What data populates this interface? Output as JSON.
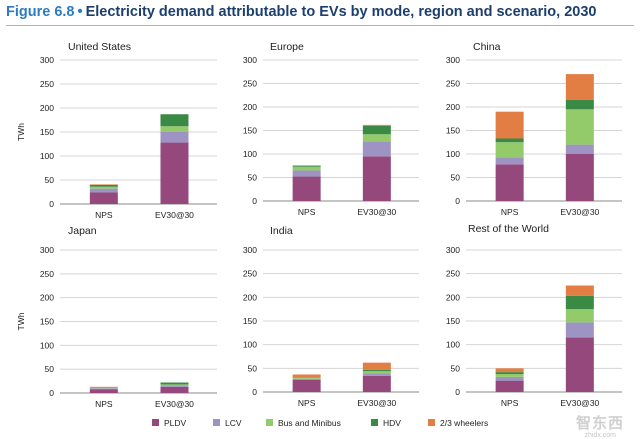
{
  "figure": {
    "number": "Figure 6.8",
    "bullet": "•",
    "title": "Electricity demand attributable to EVs by mode, region and scenario, 2030"
  },
  "colors": {
    "PLDV": "#95487c",
    "LCV": "#9d94c4",
    "Bus and Minibus": "#94cb6a",
    "HDV": "#3a8a45",
    "2/3 wheelers": "#e27d43",
    "grid": "#d4d4d4",
    "axis": "#888888"
  },
  "chart_data": [
    {
      "type": "bar",
      "stacked": true,
      "title": "United States",
      "ylabel": "TWh",
      "ylim": [
        0,
        300
      ],
      "yticks": [
        0,
        50,
        100,
        150,
        200,
        250,
        300
      ],
      "categories": [
        "NPS",
        "EV30@30"
      ],
      "series": [
        {
          "name": "PLDV",
          "values": [
            24,
            128
          ]
        },
        {
          "name": "LCV",
          "values": [
            8,
            22
          ]
        },
        {
          "name": "Bus and Minibus",
          "values": [
            4,
            12
          ]
        },
        {
          "name": "HDV",
          "values": [
            4,
            25
          ]
        },
        {
          "name": "2/3 wheelers",
          "values": [
            1,
            0
          ]
        }
      ]
    },
    {
      "type": "bar",
      "stacked": true,
      "title": "Europe",
      "ylabel": "",
      "ylim": [
        0,
        300
      ],
      "yticks": [
        0,
        50,
        100,
        150,
        200,
        250,
        300
      ],
      "categories": [
        "NPS",
        "EV30@30"
      ],
      "series": [
        {
          "name": "PLDV",
          "values": [
            52,
            95
          ]
        },
        {
          "name": "LCV",
          "values": [
            13,
            32
          ]
        },
        {
          "name": "Bus and Minibus",
          "values": [
            8,
            15
          ]
        },
        {
          "name": "HDV",
          "values": [
            2,
            18
          ]
        },
        {
          "name": "2/3 wheelers",
          "values": [
            1,
            2
          ]
        }
      ]
    },
    {
      "type": "bar",
      "stacked": true,
      "title": "China",
      "ylabel": "",
      "ylim": [
        0,
        300
      ],
      "yticks": [
        0,
        50,
        100,
        150,
        200,
        250,
        300
      ],
      "categories": [
        "NPS",
        "EV30@30"
      ],
      "series": [
        {
          "name": "PLDV",
          "values": [
            78,
            100
          ]
        },
        {
          "name": "LCV",
          "values": [
            15,
            20
          ]
        },
        {
          "name": "Bus and Minibus",
          "values": [
            32,
            75
          ]
        },
        {
          "name": "HDV",
          "values": [
            8,
            20
          ]
        },
        {
          "name": "2/3 wheelers",
          "values": [
            57,
            55
          ]
        }
      ]
    },
    {
      "type": "bar",
      "stacked": true,
      "title": "Japan",
      "ylabel": "TWh",
      "ylim": [
        0,
        300
      ],
      "yticks": [
        0,
        50,
        100,
        150,
        200,
        250,
        300
      ],
      "categories": [
        "NPS",
        "EV30@30"
      ],
      "series": [
        {
          "name": "PLDV",
          "values": [
            8,
            13
          ]
        },
        {
          "name": "LCV",
          "values": [
            2,
            3
          ]
        },
        {
          "name": "Bus and Minibus",
          "values": [
            1,
            2
          ]
        },
        {
          "name": "HDV",
          "values": [
            1,
            4
          ]
        },
        {
          "name": "2/3 wheelers",
          "values": [
            1,
            0
          ]
        }
      ]
    },
    {
      "type": "bar",
      "stacked": true,
      "title": "India",
      "ylabel": "",
      "ylim": [
        0,
        300
      ],
      "yticks": [
        0,
        50,
        100,
        150,
        200,
        250,
        300
      ],
      "categories": [
        "NPS",
        "EV30@30"
      ],
      "series": [
        {
          "name": "PLDV",
          "values": [
            26,
            34
          ]
        },
        {
          "name": "LCV",
          "values": [
            2,
            5
          ]
        },
        {
          "name": "Bus and Minibus",
          "values": [
            2,
            5
          ]
        },
        {
          "name": "HDV",
          "values": [
            1,
            3
          ]
        },
        {
          "name": "2/3 wheelers",
          "values": [
            6,
            15
          ]
        }
      ]
    },
    {
      "type": "bar",
      "stacked": true,
      "title": "Rest of the World",
      "ylabel": "",
      "ylim": [
        0,
        300
      ],
      "yticks": [
        0,
        50,
        100,
        150,
        200,
        250,
        300
      ],
      "categories": [
        "NPS",
        "EV30@30"
      ],
      "series": [
        {
          "name": "PLDV",
          "values": [
            24,
            115
          ]
        },
        {
          "name": "LCV",
          "values": [
            8,
            32
          ]
        },
        {
          "name": "Bus and Minibus",
          "values": [
            6,
            28
          ]
        },
        {
          "name": "HDV",
          "values": [
            4,
            28
          ]
        },
        {
          "name": "2/3 wheelers",
          "values": [
            8,
            22
          ]
        }
      ]
    }
  ],
  "legend": [
    "PLDV",
    "LCV",
    "Bus and Minibus",
    "HDV",
    "2/3 wheelers"
  ],
  "watermark": {
    "main": "智东西",
    "sub": "zhidx.com"
  }
}
